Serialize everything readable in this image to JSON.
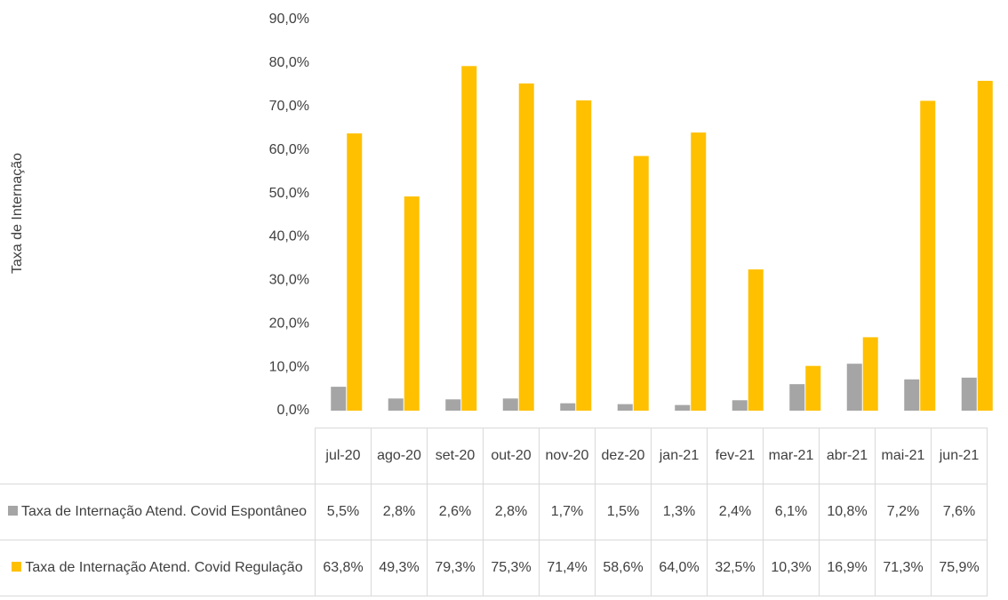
{
  "chart_data": {
    "type": "bar",
    "y_label": "Taxa de Internação",
    "categories": [
      "jul-20",
      "ago-20",
      "set-20",
      "out-20",
      "nov-20",
      "dez-20",
      "jan-21",
      "fev-21",
      "mar-21",
      "abr-21",
      "mai-21",
      "jun-21"
    ],
    "series": [
      {
        "name": "Taxa de Internação Atend. Covid Espontâneo",
        "color": "#a5a5a5",
        "values": [
          5.5,
          2.8,
          2.6,
          2.8,
          1.7,
          1.5,
          1.3,
          2.4,
          6.1,
          10.8,
          7.2,
          7.6
        ],
        "value_labels": [
          "5,5%",
          "2,8%",
          "2,6%",
          "2,8%",
          "1,7%",
          "1,5%",
          "1,3%",
          "2,4%",
          "6,1%",
          "10,8%",
          "7,2%",
          "7,6%"
        ]
      },
      {
        "name": "Taxa de Internação Atend. Covid Regulação",
        "color": "#ffc000",
        "values": [
          63.8,
          49.3,
          79.3,
          75.3,
          71.4,
          58.6,
          64.0,
          32.5,
          10.3,
          16.9,
          71.3,
          75.9
        ],
        "value_labels": [
          "63,8%",
          "49,3%",
          "79,3%",
          "75,3%",
          "71,4%",
          "58,6%",
          "64,0%",
          "32,5%",
          "10,3%",
          "16,9%",
          "71,3%",
          "75,9%"
        ]
      }
    ],
    "ylim": [
      0,
      90
    ],
    "yticks": [
      {
        "value": 0,
        "label": "0,0%"
      },
      {
        "value": 10,
        "label": "10,0%"
      },
      {
        "value": 20,
        "label": "20,0%"
      },
      {
        "value": 30,
        "label": "30,0%"
      },
      {
        "value": 40,
        "label": "40,0%"
      },
      {
        "value": 50,
        "label": "50,0%"
      },
      {
        "value": 60,
        "label": "60,0%"
      },
      {
        "value": 70,
        "label": "70,0%"
      },
      {
        "value": 80,
        "label": "80,0%"
      },
      {
        "value": 90,
        "label": "90,0%"
      }
    ],
    "grid": false
  }
}
